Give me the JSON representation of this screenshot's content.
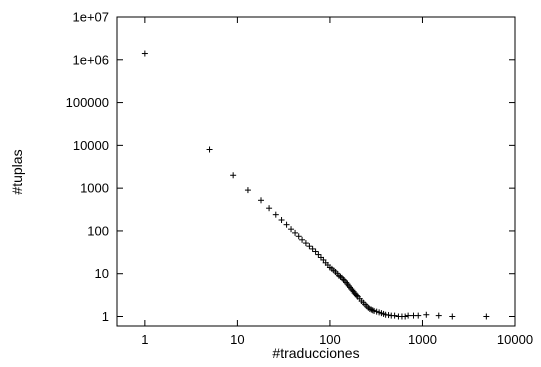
{
  "chart_data": {
    "type": "scatter",
    "title": "",
    "xlabel": "#traducciones",
    "ylabel": "#tuplas",
    "xscale": "log",
    "yscale": "log",
    "xlim": [
      0.5,
      10000
    ],
    "ylim": [
      0.6,
      10000000
    ],
    "grid": false,
    "marker": "plus",
    "color": "#000000",
    "x_ticks": [
      {
        "value": 1,
        "label": "1"
      },
      {
        "value": 10,
        "label": "10"
      },
      {
        "value": 100,
        "label": "100"
      },
      {
        "value": 1000,
        "label": "1000"
      },
      {
        "value": 10000,
        "label": "10000"
      }
    ],
    "y_ticks": [
      {
        "value": 1,
        "label": "1"
      },
      {
        "value": 10,
        "label": "10"
      },
      {
        "value": 100,
        "label": "100"
      },
      {
        "value": 1000,
        "label": "1000"
      },
      {
        "value": 10000,
        "label": "10000"
      },
      {
        "value": 100000,
        "label": "100000"
      },
      {
        "value": 1000000,
        "label": "1e+06"
      },
      {
        "value": 10000000,
        "label": "1e+07"
      }
    ],
    "points": [
      [
        1,
        1400000
      ],
      [
        5,
        8000
      ],
      [
        9,
        2000
      ],
      [
        13,
        900
      ],
      [
        18,
        520
      ],
      [
        22,
        340
      ],
      [
        26,
        240
      ],
      [
        30,
        180
      ],
      [
        34,
        140
      ],
      [
        38,
        110
      ],
      [
        42,
        90
      ],
      [
        46,
        75
      ],
      [
        50,
        62
      ],
      [
        55,
        52
      ],
      [
        60,
        44
      ],
      [
        65,
        38
      ],
      [
        70,
        33
      ],
      [
        75,
        28
      ],
      [
        80,
        24
      ],
      [
        85,
        21
      ],
      [
        90,
        18
      ],
      [
        95,
        16
      ],
      [
        100,
        14
      ],
      [
        105,
        13
      ],
      [
        110,
        12
      ],
      [
        115,
        11
      ],
      [
        120,
        10
      ],
      [
        125,
        9
      ],
      [
        130,
        8.5
      ],
      [
        135,
        8
      ],
      [
        140,
        7.3
      ],
      [
        145,
        6.8
      ],
      [
        150,
        6.2
      ],
      [
        155,
        5.7
      ],
      [
        160,
        5.2
      ],
      [
        165,
        4.8
      ],
      [
        170,
        4.4
      ],
      [
        175,
        4.1
      ],
      [
        180,
        3.8
      ],
      [
        185,
        3.5
      ],
      [
        190,
        3.3
      ],
      [
        195,
        3.1
      ],
      [
        200,
        2.9
      ],
      [
        210,
        2.6
      ],
      [
        220,
        2.3
      ],
      [
        230,
        2.1
      ],
      [
        240,
        1.9
      ],
      [
        250,
        1.75
      ],
      [
        260,
        1.6
      ],
      [
        270,
        1.5
      ],
      [
        280,
        1.45
      ],
      [
        290,
        1.4
      ],
      [
        300,
        1.35
      ],
      [
        320,
        1.3
      ],
      [
        340,
        1.25
      ],
      [
        360,
        1.2
      ],
      [
        380,
        1.15
      ],
      [
        400,
        1.1
      ],
      [
        430,
        1.08
      ],
      [
        460,
        1.05
      ],
      [
        500,
        1.05
      ],
      [
        550,
        1.0
      ],
      [
        600,
        1.0
      ],
      [
        650,
        1.0
      ],
      [
        700,
        1.05
      ],
      [
        800,
        1.05
      ],
      [
        900,
        1.05
      ],
      [
        1100,
        1.1
      ],
      [
        1500,
        1.05
      ],
      [
        2100,
        1.0
      ],
      [
        4900,
        1.0
      ]
    ]
  }
}
